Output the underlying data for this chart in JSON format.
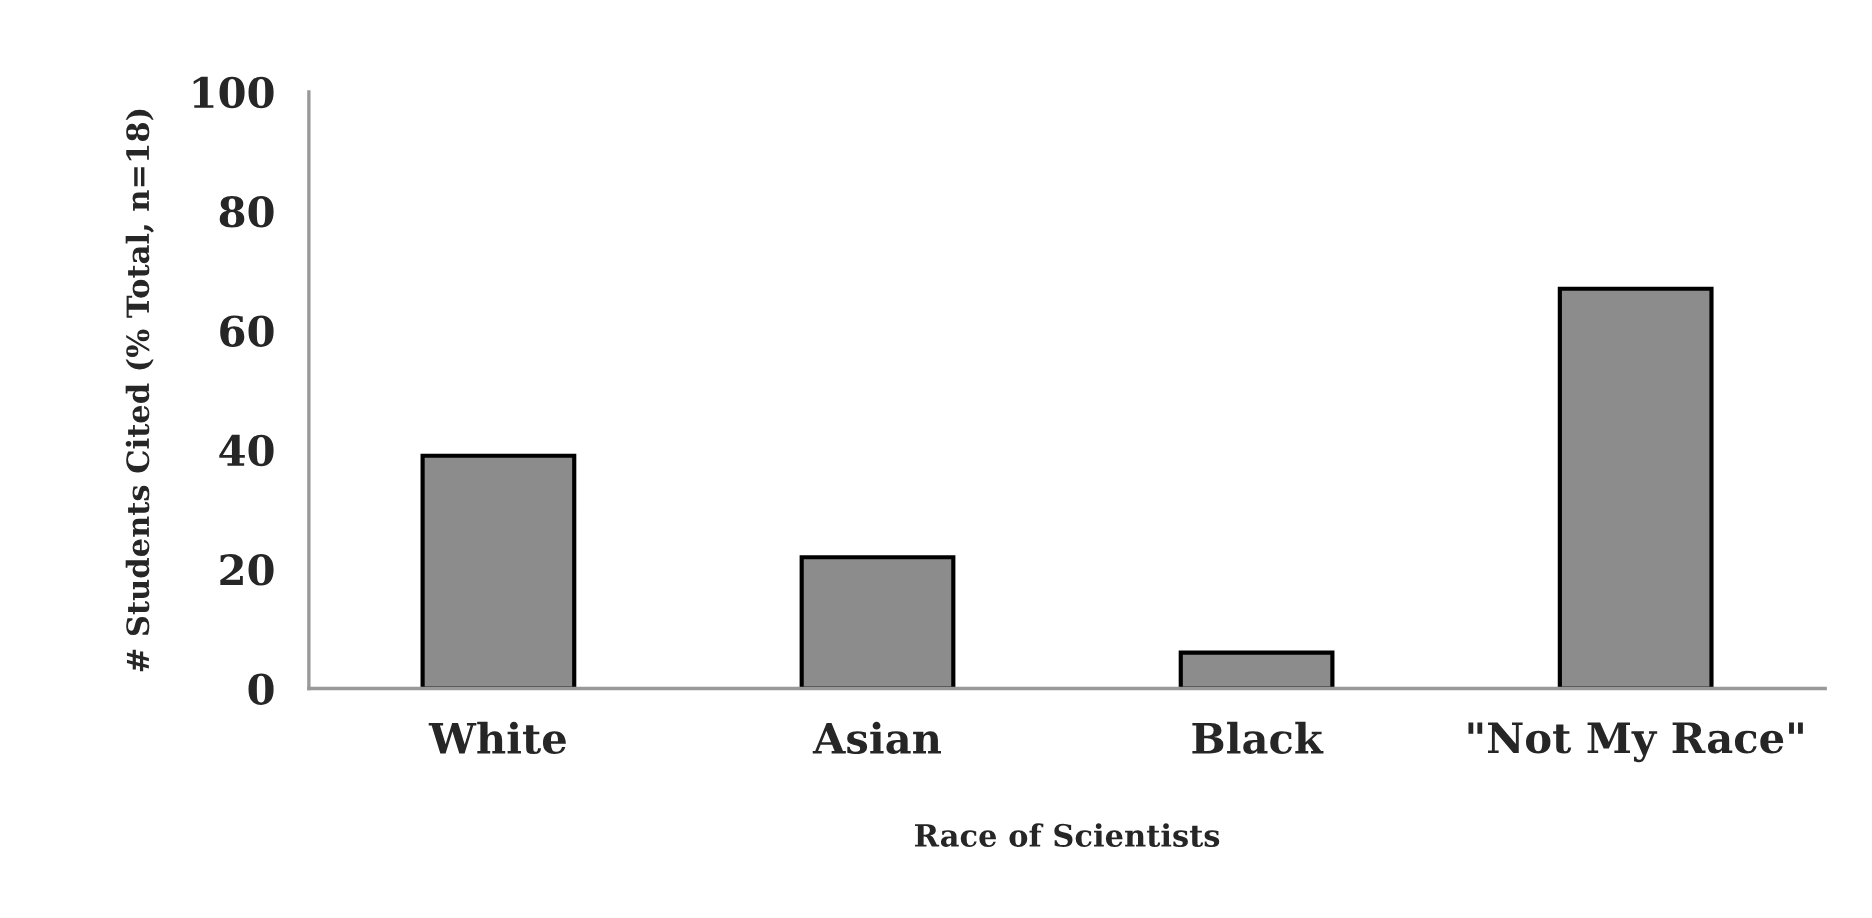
{
  "chart_data": {
    "type": "bar",
    "xlabel": "Race of Scientists",
    "ylabel": "# Students Cited (% Total, n=18)",
    "categories": [
      "White",
      "Asian",
      "Black",
      "\"Not My Race\""
    ],
    "values": [
      39,
      22,
      6,
      67
    ],
    "color": "#8c8c8c",
    "ylim": [
      0,
      100
    ],
    "yticks": [
      0,
      20,
      40,
      60,
      80,
      100
    ],
    "grid": false,
    "legend": false
  }
}
